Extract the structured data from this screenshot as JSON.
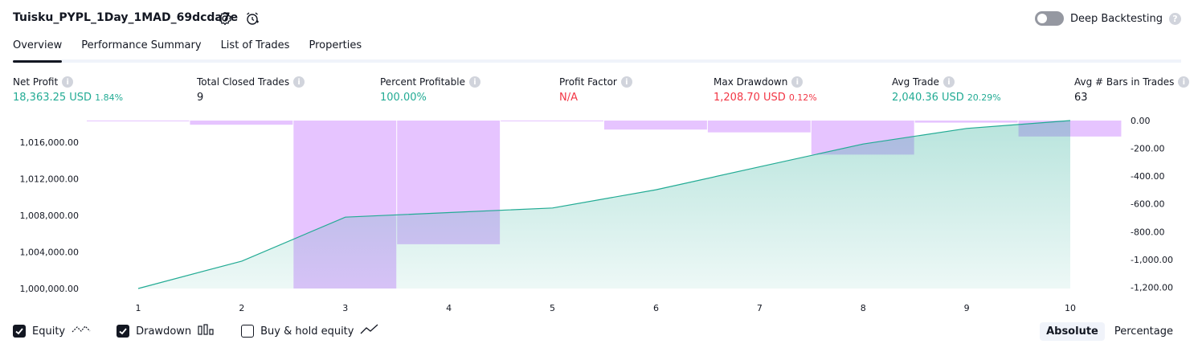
{
  "header": {
    "title": "Tuisku_PYPL_1Day_1MAD_69dcda7e",
    "deep_backtesting_label": "Deep Backtesting",
    "help_glyph": "?"
  },
  "tabs": [
    {
      "label": "Overview",
      "active": true
    },
    {
      "label": "Performance Summary",
      "active": false
    },
    {
      "label": "List of Trades",
      "active": false
    },
    {
      "label": "Properties",
      "active": false
    }
  ],
  "metrics": {
    "net_profit": {
      "label": "Net Profit",
      "value": "18,363.25 USD",
      "pct": "1.84%"
    },
    "total_closed_trades": {
      "label": "Total Closed Trades",
      "value": "9"
    },
    "percent_profitable": {
      "label": "Percent Profitable",
      "value": "100.00%"
    },
    "profit_factor": {
      "label": "Profit Factor",
      "value": "N/A"
    },
    "max_drawdown": {
      "label": "Max Drawdown",
      "value": "1,208.70 USD",
      "pct": "0.12%"
    },
    "avg_trade": {
      "label": "Avg Trade",
      "value": "2,040.36 USD",
      "pct": "20.29%"
    },
    "avg_bars": {
      "label": "Avg # Bars in Trades",
      "value": "63"
    }
  },
  "info_glyph": "i",
  "chart_data": {
    "type": "area",
    "x": [
      1,
      2,
      3,
      4,
      5,
      6,
      7,
      8,
      9,
      10
    ],
    "left_ticks": [
      "1,016,000.00",
      "1,012,000.00",
      "1,008,000.00",
      "1,004,000.00",
      "1,000,000.00"
    ],
    "left_tick_values": [
      1016000,
      1012000,
      1008000,
      1004000,
      1000000
    ],
    "right_ticks": [
      "0.00",
      "-200.00",
      "-400.00",
      "-600.00",
      "-800.00",
      "-1,000.00",
      "-1,200.00"
    ],
    "right_tick_values": [
      0,
      -200,
      -400,
      -600,
      -800,
      -1000,
      -1200
    ],
    "equity": {
      "name": "Equity",
      "values": [
        1000000,
        1003000,
        1007800,
        1008300,
        1008800,
        1010800,
        1013300,
        1015800,
        1017500,
        1018363
      ]
    },
    "drawdown": {
      "name": "Drawdown",
      "bars": [
        {
          "from": 0.0,
          "to": 1.5,
          "value": -5
        },
        {
          "from": 1.5,
          "to": 2.5,
          "value": -30
        },
        {
          "from": 2.5,
          "to": 3.5,
          "value": -1208.7
        },
        {
          "from": 3.5,
          "to": 4.5,
          "value": -890
        },
        {
          "from": 4.5,
          "to": 5.5,
          "value": -5
        },
        {
          "from": 5.5,
          "to": 6.5,
          "value": -65
        },
        {
          "from": 6.5,
          "to": 7.5,
          "value": -85
        },
        {
          "from": 7.5,
          "to": 8.5,
          "value": -245
        },
        {
          "from": 8.5,
          "to": 9.5,
          "value": -15
        },
        {
          "from": 9.5,
          "to": 10.5,
          "value": -115
        }
      ]
    },
    "ylim_left": [
      1000000,
      1018363
    ],
    "ylim_right": [
      -1208.7,
      0
    ],
    "colors": {
      "equity_line": "#22ab94",
      "equity_fill": "#22ab94",
      "drawdown_fill": "#c77dff",
      "axis_text": "#131722"
    }
  },
  "legend": {
    "equity_label": "Equity",
    "drawdown_label": "Drawdown",
    "buy_hold_label": "Buy & hold equity",
    "equity_checked": true,
    "drawdown_checked": true,
    "buy_hold_checked": false
  },
  "modes": {
    "absolute": "Absolute",
    "percentage": "Percentage",
    "active": "absolute"
  }
}
